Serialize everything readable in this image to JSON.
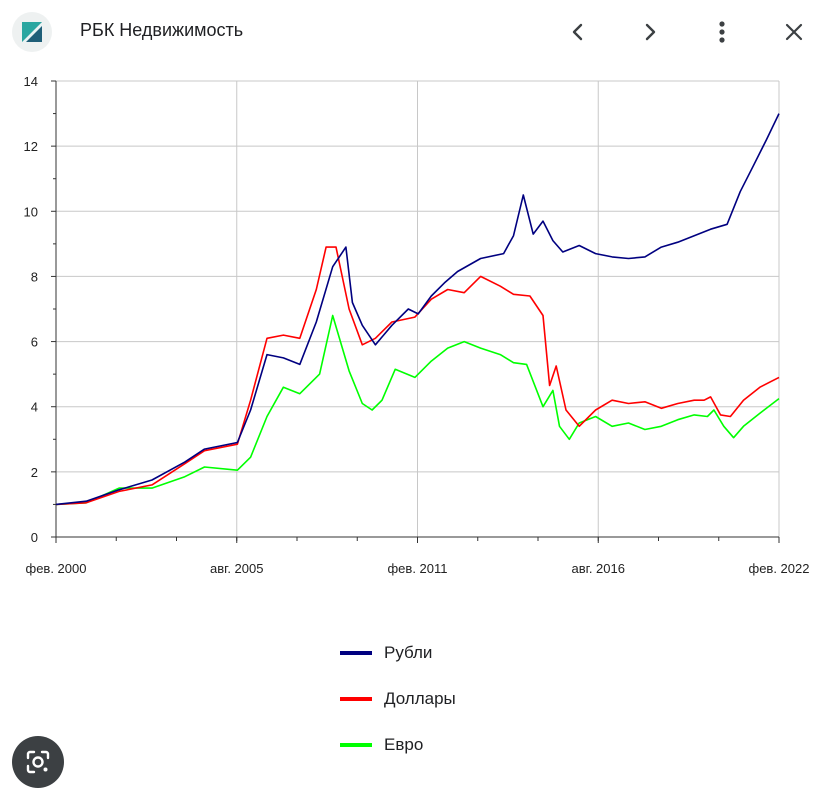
{
  "header": {
    "site_name": "РБК Недвижимость",
    "logo_icon": "rbc-logo-icon",
    "buttons": [
      "chevron-left-icon",
      "chevron-right-icon",
      "more-vert-icon",
      "close-icon"
    ]
  },
  "lens_icon": "camera-lens-icon",
  "colors": {
    "rub": "#000080",
    "usd": "#ff0000",
    "eur": "#00ff00",
    "grid": "#c8c8c8"
  },
  "chart_data": {
    "type": "line",
    "title": "",
    "xlabel": "",
    "ylabel": "",
    "ylim": [
      0,
      14
    ],
    "yticks": [
      "0",
      "2",
      "4",
      "6",
      "8",
      "10",
      "12",
      "14"
    ],
    "xticks": [
      "фев. 2000",
      "авг. 2005",
      "фев. 2011",
      "авг. 2016",
      "фев. 2022"
    ],
    "xlim": [
      2000.08,
      2022.08
    ],
    "grid": true,
    "legend_position": "bottom",
    "series": [
      {
        "name": "Рубли",
        "x": [
          2000.08,
          2001,
          2002,
          2003,
          2004,
          2004.6,
          2005.6,
          2006,
          2006.5,
          2007,
          2007.5,
          2008,
          2008.5,
          2008.9,
          2009.1,
          2009.4,
          2009.8,
          2010.3,
          2010.8,
          2011.1,
          2011.5,
          2011.9,
          2012.3,
          2013,
          2013.7,
          2014,
          2014.3,
          2014.6,
          2014.9,
          2015.2,
          2015.5,
          2016,
          2016.5,
          2017,
          2017.5,
          2018,
          2018.5,
          2019,
          2019.5,
          2020,
          2020.5,
          2020.9,
          2021.3,
          2021.7,
          2022.08
        ],
        "values": [
          1.0,
          1.1,
          1.45,
          1.75,
          2.3,
          2.7,
          2.9,
          3.9,
          5.6,
          5.5,
          5.3,
          6.6,
          8.3,
          8.9,
          7.2,
          6.5,
          5.9,
          6.5,
          7.0,
          6.85,
          7.4,
          7.8,
          8.15,
          8.55,
          8.7,
          9.25,
          10.5,
          9.3,
          9.7,
          9.1,
          8.75,
          8.95,
          8.7,
          8.6,
          8.55,
          8.6,
          8.9,
          9.05,
          9.25,
          9.45,
          9.6,
          10.6,
          11.4,
          12.2,
          13.0
        ]
      },
      {
        "name": "Доллары",
        "x": [
          2000.08,
          2001,
          2002,
          2003,
          2004,
          2004.6,
          2005.6,
          2006,
          2006.5,
          2007,
          2007.5,
          2008,
          2008.3,
          2008.6,
          2009,
          2009.4,
          2009.8,
          2010.3,
          2011,
          2011.5,
          2012,
          2012.5,
          2013,
          2013.6,
          2014,
          2014.5,
          2014.9,
          2015.1,
          2015.3,
          2015.6,
          2016,
          2016.5,
          2017,
          2017.5,
          2018,
          2018.5,
          2019,
          2019.5,
          2019.8,
          2020,
          2020.3,
          2020.6,
          2021,
          2021.5,
          2022.08
        ],
        "values": [
          1.0,
          1.05,
          1.4,
          1.6,
          2.25,
          2.65,
          2.85,
          4.2,
          6.1,
          6.2,
          6.1,
          7.6,
          8.9,
          8.9,
          7.0,
          5.9,
          6.1,
          6.6,
          6.75,
          7.3,
          7.6,
          7.5,
          8.0,
          7.7,
          7.45,
          7.4,
          6.8,
          4.65,
          5.25,
          3.9,
          3.4,
          3.9,
          4.2,
          4.1,
          4.15,
          3.95,
          4.1,
          4.2,
          4.2,
          4.3,
          3.75,
          3.7,
          4.2,
          4.6,
          4.9
        ]
      },
      {
        "name": "Евро",
        "x": [
          2000.08,
          2001,
          2002,
          2003,
          2004,
          2004.6,
          2005.6,
          2006,
          2006.5,
          2007,
          2007.5,
          2008.1,
          2008.5,
          2009,
          2009.4,
          2009.7,
          2010,
          2010.4,
          2011,
          2011.5,
          2012,
          2012.5,
          2013,
          2013.6,
          2014,
          2014.4,
          2014.9,
          2015.2,
          2015.4,
          2015.7,
          2016,
          2016.5,
          2017,
          2017.5,
          2018,
          2018.5,
          2019,
          2019.5,
          2019.9,
          2020.1,
          2020.4,
          2020.7,
          2021,
          2021.5,
          2022.08
        ],
        "values": [
          1.0,
          1.05,
          1.5,
          1.5,
          1.85,
          2.15,
          2.05,
          2.45,
          3.7,
          4.6,
          4.4,
          5.0,
          6.8,
          5.1,
          4.1,
          3.9,
          4.2,
          5.15,
          4.9,
          5.4,
          5.8,
          6.0,
          5.8,
          5.6,
          5.35,
          5.3,
          4.0,
          4.5,
          3.4,
          3.0,
          3.5,
          3.7,
          3.4,
          3.5,
          3.3,
          3.4,
          3.6,
          3.75,
          3.7,
          3.9,
          3.4,
          3.05,
          3.4,
          3.8,
          4.25
        ]
      }
    ]
  }
}
